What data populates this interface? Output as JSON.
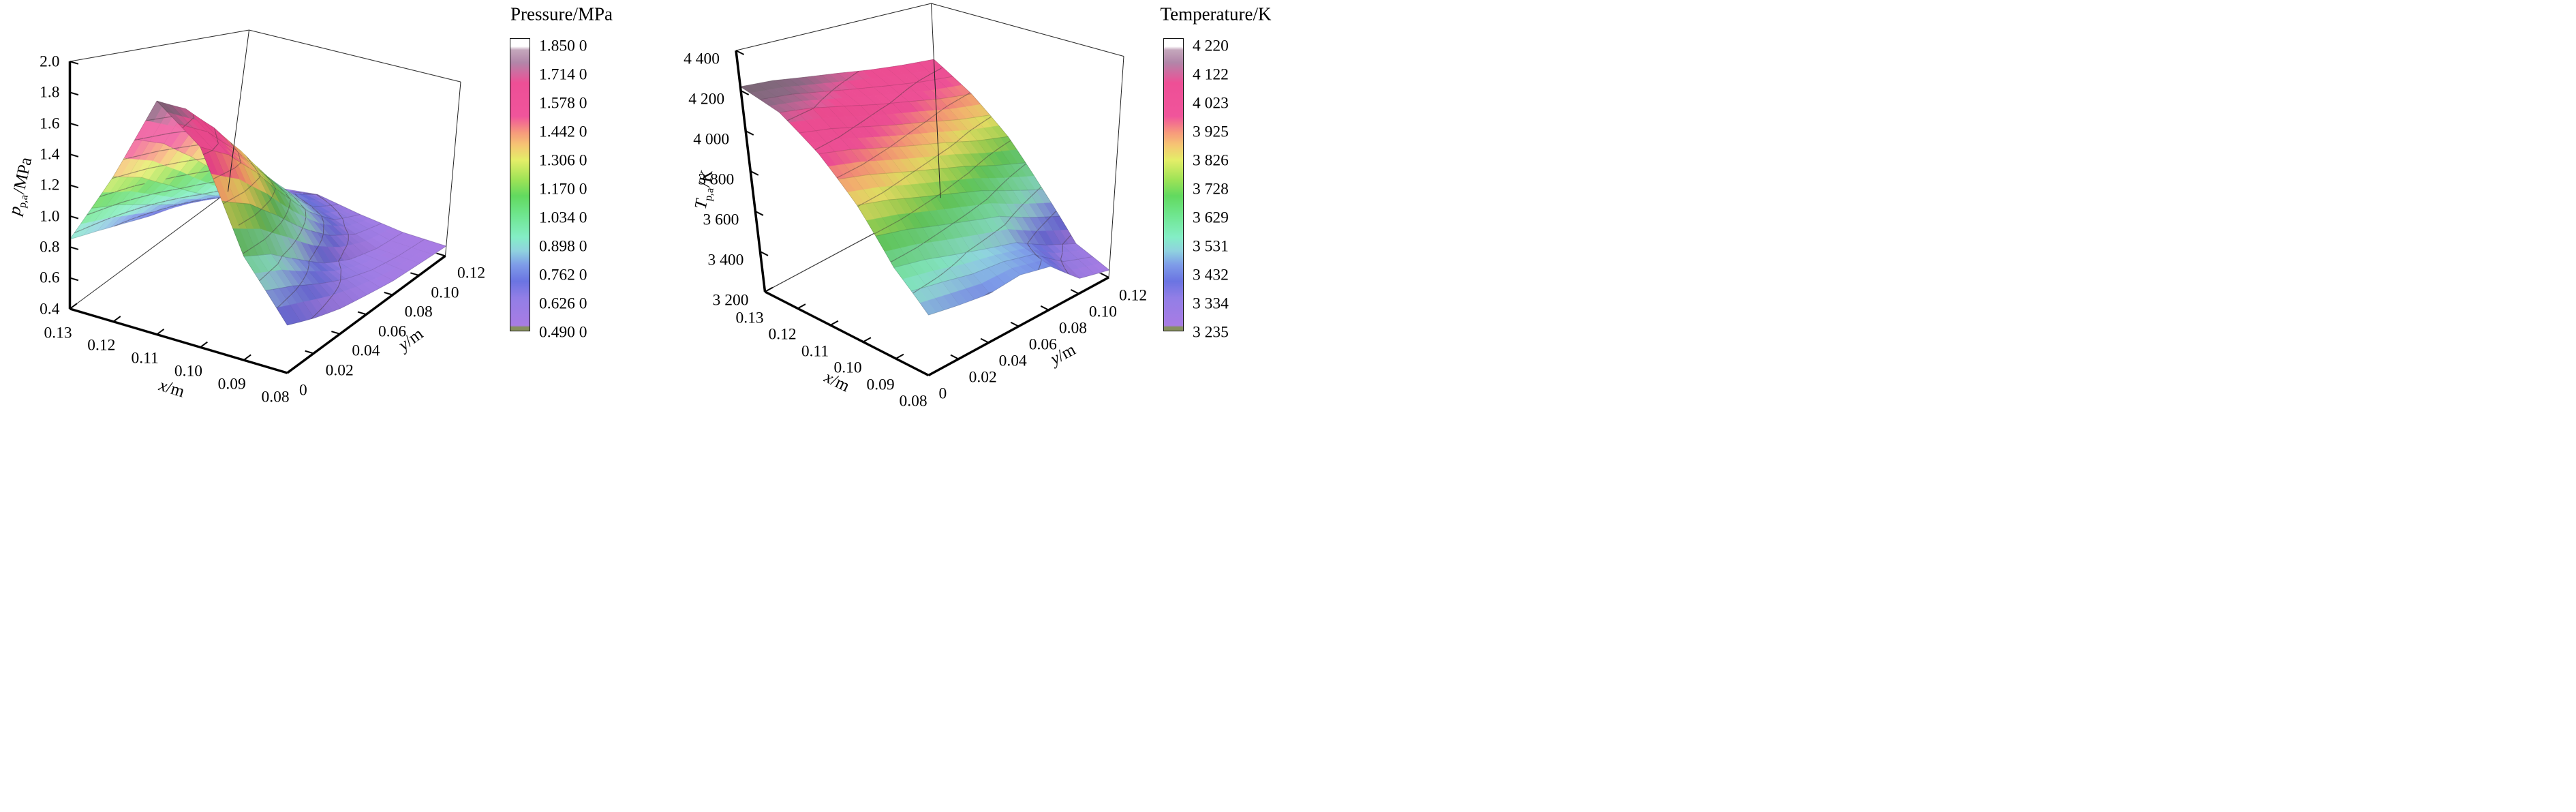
{
  "figure": {
    "background": "#ffffff",
    "left_colorbar_title": "Pressure/MPa",
    "right_colorbar_title": "Temperature/K"
  },
  "colormap": {
    "stops": [
      {
        "t": 0.0,
        "c": "#a87ce4"
      },
      {
        "t": 0.1,
        "c": "#927ee6"
      },
      {
        "t": 0.16,
        "c": "#6b74e2"
      },
      {
        "t": 0.22,
        "c": "#7e9ce8"
      },
      {
        "t": 0.27,
        "c": "#8fd2df"
      },
      {
        "t": 0.32,
        "c": "#84eec6"
      },
      {
        "t": 0.4,
        "c": "#6fe68f"
      },
      {
        "t": 0.47,
        "c": "#62d95f"
      },
      {
        "t": 0.53,
        "c": "#9fe356"
      },
      {
        "t": 0.6,
        "c": "#e4ee68"
      },
      {
        "t": 0.655,
        "c": "#f6c573"
      },
      {
        "t": 0.7,
        "c": "#f79a7c"
      },
      {
        "t": 0.76,
        "c": "#f0549b"
      },
      {
        "t": 0.88,
        "c": "#ee4f96"
      },
      {
        "t": 0.955,
        "c": "#b286a9"
      },
      {
        "t": 1.0,
        "c": "#c4a7bc"
      }
    ],
    "bar_bottom_edge": "#87905f",
    "bar_top_edge": "#ffffff"
  },
  "chart_data": [
    {
      "type": "surface3d",
      "id": "pressure",
      "colorbar": {
        "title": "Pressure/MPa",
        "min": 0.49,
        "max": 1.85,
        "labels": [
          "1.850 0",
          "1.714 0",
          "1.578 0",
          "1.442 0",
          "1.306 0",
          "1.170 0",
          "1.034 0",
          "0.898 0",
          "0.762 0",
          "0.626 0",
          "0.490 0"
        ],
        "levels": [
          1.714,
          1.578,
          1.442,
          1.306,
          1.17,
          1.034,
          0.898,
          0.762,
          0.626
        ]
      },
      "axes": {
        "x": {
          "label_italic": "x",
          "label_sub": "",
          "label_rest": "/m",
          "ticks": [
            "0.13",
            "0.12",
            "0.11",
            "0.10",
            "0.09",
            "0.08"
          ],
          "tick_values": [
            0.13,
            0.12,
            0.11,
            0.1,
            0.09,
            0.08
          ]
        },
        "y": {
          "label_italic": "y",
          "label_sub": "",
          "label_rest": "/m",
          "ticks": [
            "0",
            "0.02",
            "0.04",
            "0.06",
            "0.08",
            "0.10",
            "0.12"
          ],
          "tick_values": [
            0,
            0.02,
            0.04,
            0.06,
            0.08,
            0.1,
            0.12
          ]
        },
        "z": {
          "label_italic": "p",
          "label_sub": "p,a",
          "label_rest": "/MPa",
          "ticks": [
            "2.0",
            "1.8",
            "1.6",
            "1.4",
            "1.2",
            "1.0",
            "0.8",
            "0.6",
            "0.4"
          ],
          "tick_values": [
            2.0,
            1.8,
            1.6,
            1.4,
            1.2,
            1.0,
            0.8,
            0.6,
            0.4
          ],
          "range": [
            0.4,
            2.0
          ]
        }
      },
      "x": [
        0.13,
        0.12,
        0.11,
        0.1,
        0.09,
        0.08
      ],
      "y": [
        0,
        0.02,
        0.04,
        0.06,
        0.08,
        0.1,
        0.12
      ],
      "z_grid": [
        [
          0.85,
          0.8,
          0.74,
          0.67,
          0.61,
          0.55,
          0.52
        ],
        [
          1.32,
          1.24,
          1.1,
          0.94,
          0.79,
          0.65,
          0.57
        ],
        [
          1.85,
          1.76,
          1.58,
          1.34,
          1.05,
          0.78,
          0.62
        ],
        [
          1.62,
          1.52,
          1.34,
          1.1,
          0.86,
          0.66,
          0.55
        ],
        [
          1.02,
          0.95,
          0.82,
          0.68,
          0.58,
          0.52,
          0.5
        ],
        [
          0.68,
          0.62,
          0.57,
          0.54,
          0.51,
          0.5,
          0.49
        ]
      ]
    },
    {
      "type": "surface3d",
      "id": "temperature",
      "colorbar": {
        "title": "Temperature/K",
        "min": 3235,
        "max": 4220,
        "labels": [
          "4 220",
          "4 122",
          "4 023",
          "3 925",
          "3 826",
          "3 728",
          "3 629",
          "3 531",
          "3 432",
          "3 334",
          "3 235"
        ],
        "levels": [
          4122,
          4023,
          3925,
          3826,
          3728,
          3629,
          3531,
          3432,
          3334
        ]
      },
      "axes": {
        "x": {
          "label_italic": "x",
          "label_sub": "",
          "label_rest": "/m",
          "ticks": [
            "0.13",
            "0.12",
            "0.11",
            "0.10",
            "0.09",
            "0.08"
          ],
          "tick_values": [
            0.13,
            0.12,
            0.11,
            0.1,
            0.09,
            0.08
          ]
        },
        "y": {
          "label_italic": "y",
          "label_sub": "",
          "label_rest": "/m",
          "ticks": [
            "0",
            "0.02",
            "0.04",
            "0.06",
            "0.08",
            "0.10",
            "0.12"
          ],
          "tick_values": [
            0,
            0.02,
            0.04,
            0.06,
            0.08,
            0.1,
            0.12
          ]
        },
        "z": {
          "label_italic": "T",
          "label_sub": "p,a",
          "label_rest": "/K",
          "ticks": [
            "4 400",
            "4 200",
            "4 000",
            "3 800",
            "3 600",
            "3 400",
            "3 200"
          ],
          "tick_values": [
            4400,
            4200,
            4000,
            3800,
            3600,
            3400,
            3200
          ],
          "range": [
            3200,
            4400
          ]
        }
      },
      "x": [
        0.13,
        0.12,
        0.11,
        0.1,
        0.09,
        0.08
      ],
      "y": [
        0,
        0.02,
        0.04,
        0.06,
        0.08,
        0.1,
        0.12
      ],
      "z_grid": [
        [
          4220,
          4205,
          4175,
          4145,
          4110,
          4080,
          4055
        ],
        [
          4150,
          4125,
          4085,
          4040,
          4000,
          3955,
          3920
        ],
        [
          4010,
          3980,
          3935,
          3890,
          3845,
          3790,
          3745
        ],
        [
          3830,
          3800,
          3755,
          3710,
          3660,
          3590,
          3520
        ],
        [
          3610,
          3585,
          3545,
          3505,
          3465,
          3375,
          3300
        ],
        [
          3465,
          3445,
          3430,
          3450,
          3420,
          3280,
          3240
        ]
      ]
    }
  ]
}
